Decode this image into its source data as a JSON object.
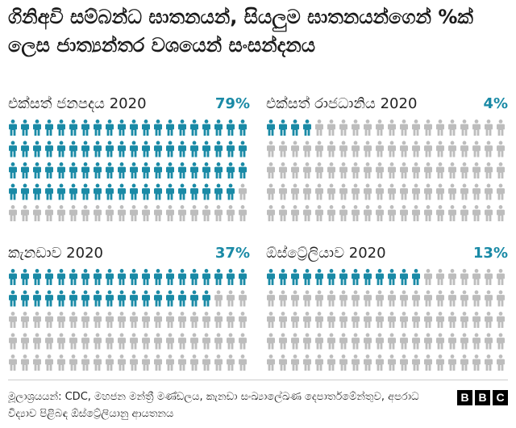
{
  "title": "ගිනිඅවි සම්බන්ධ ඝාතනයන්, සියලුම ඝාතනයන්ගෙන් %ක් ලෙස ජාත්‍යන්තර වශයෙන් සංසන්දනය",
  "colors": {
    "highlight": "#1a8aa6",
    "base": "#bdbdbd",
    "text": "#222222"
  },
  "chart_data": [
    {
      "type": "pictogram",
      "label": "එක්සත් ජනපදය 2020",
      "percent_label": "79%",
      "value": 79,
      "total": 100
    },
    {
      "type": "pictogram",
      "label": "එක්සත් රාජධානිය 2020",
      "percent_label": "4%",
      "value": 4,
      "total": 100
    },
    {
      "type": "pictogram",
      "label": "කැනඩාව 2020",
      "percent_label": "37%",
      "value": 37,
      "total": 100
    },
    {
      "type": "pictogram",
      "label": "ඕස්ට්‍රේලියාව 2020",
      "percent_label": "13%",
      "value": 13,
      "total": 100
    }
  ],
  "footer": {
    "source": "මූලාශ්‍රයයන්: CDC, මහජන මන්ත්‍රී මණ්ඩලය, කැනඩා සංඛ්‍යාලේඛණ දෙපාර්තමේන්තුව, අපරාධ විද්‍යාව පිළිබඳ ඕස්ට්‍රේලියානු ආයතනය",
    "logo": [
      "B",
      "B",
      "C"
    ]
  }
}
